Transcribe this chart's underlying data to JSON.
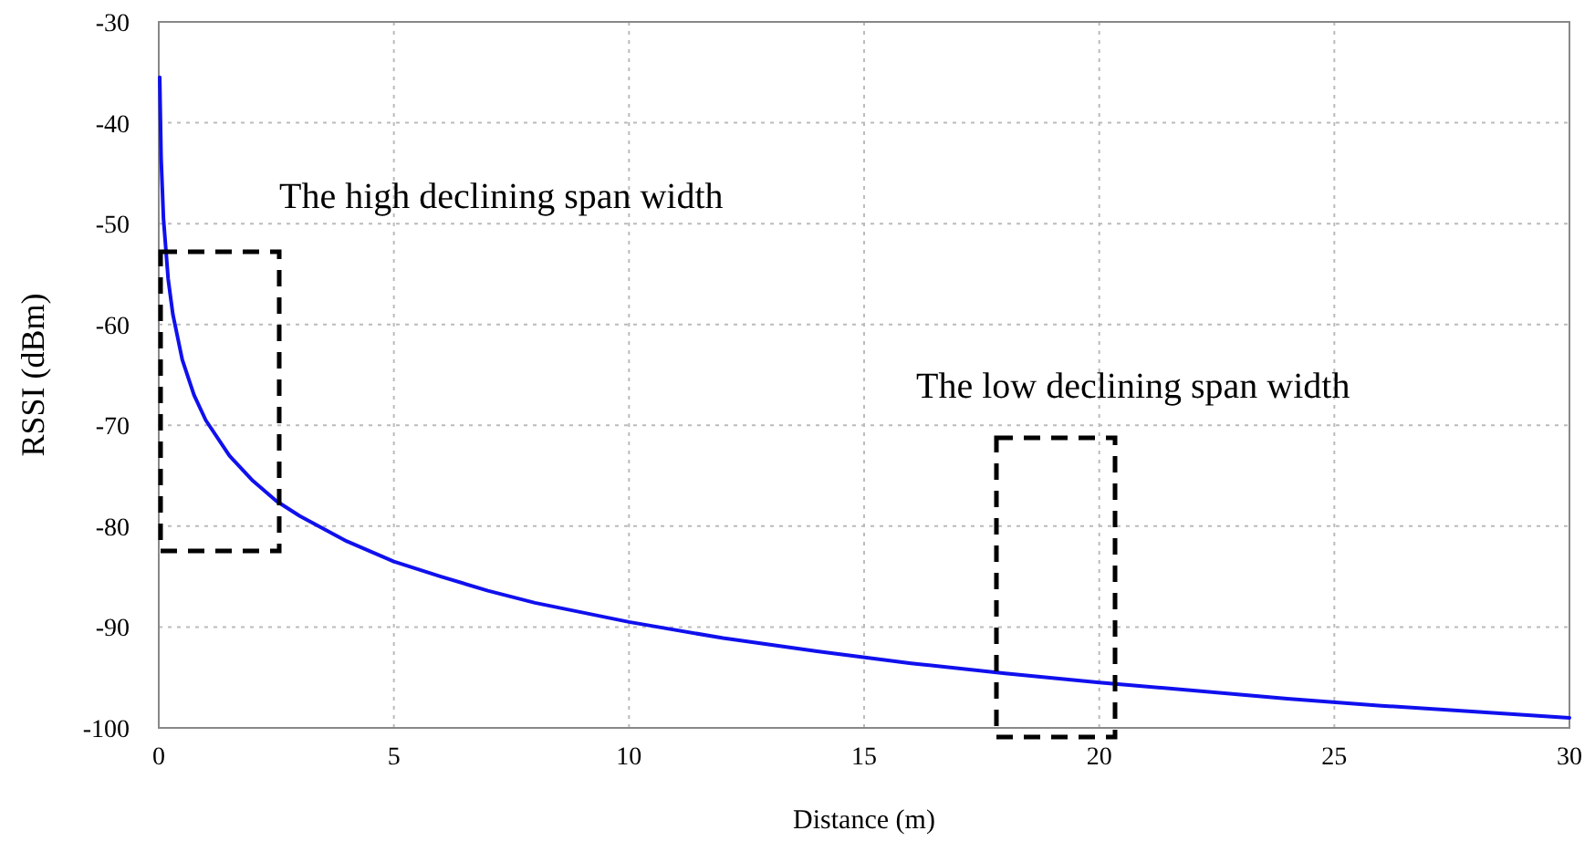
{
  "chart_data": {
    "type": "line",
    "xlabel": "Distance (m)",
    "ylabel": "RSSI (dBm)",
    "x": [
      0.02,
      0.05,
      0.1,
      0.2,
      0.3,
      0.5,
      0.75,
      1,
      1.5,
      2,
      2.5,
      3,
      4,
      5,
      6,
      7,
      8,
      10,
      12,
      14,
      16,
      18,
      20,
      22,
      24,
      26,
      28,
      30
    ],
    "series": [
      {
        "color": "#1010ee",
        "values": [
          -35.5,
          -43.5,
          -49.5,
          -55.5,
          -59,
          -63.5,
          -67,
          -69.5,
          -73,
          -75.5,
          -77.5,
          -79,
          -81.5,
          -83.5,
          -85,
          -86.4,
          -87.6,
          -89.5,
          -91.1,
          -92.4,
          -93.6,
          -94.6,
          -95.5,
          -96.3,
          -97.1,
          -97.8,
          -98.4,
          -99
        ]
      }
    ],
    "xlim": [
      0,
      30
    ],
    "xticks": [
      0,
      5,
      10,
      15,
      20,
      25,
      30
    ],
    "ylim": [
      -100,
      -30
    ],
    "yticks": [
      -100,
      -90,
      -80,
      -70,
      -60,
      -50,
      -40,
      -30
    ],
    "grid": true,
    "marker": "none",
    "line_style": "solid",
    "annotations": [
      "The high declining span width",
      "The low declining span width"
    ]
  }
}
